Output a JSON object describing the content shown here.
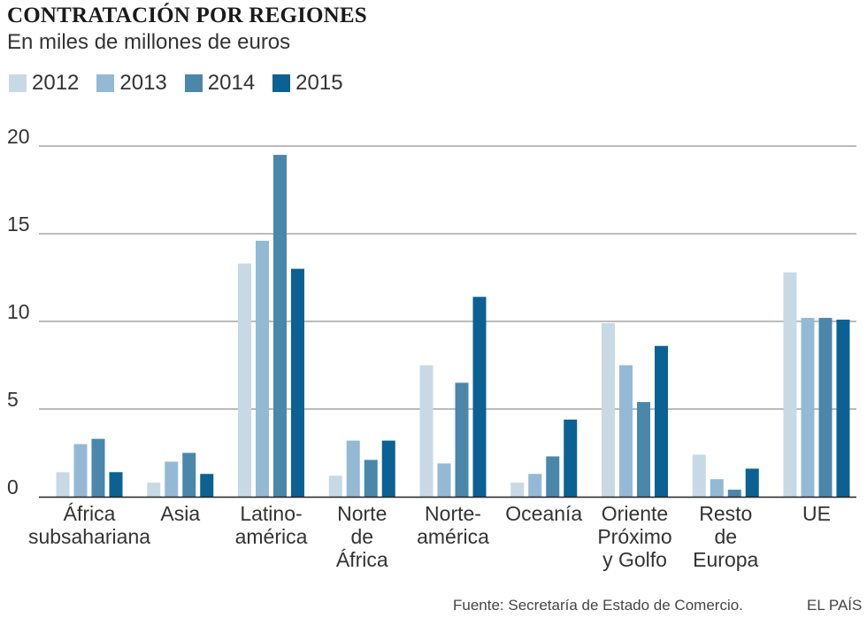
{
  "chart_data": {
    "type": "bar",
    "title": "CONTRATACIÓN POR REGIONES",
    "subtitle": "En miles de millones de euros",
    "categories": [
      [
        "África",
        "subsahariana"
      ],
      [
        "Asia"
      ],
      [
        "Latino-",
        "américa"
      ],
      [
        "Norte",
        "de",
        "África"
      ],
      [
        "Norte-",
        "américa"
      ],
      [
        "Oceanía"
      ],
      [
        "Oriente",
        "Próximo",
        "y Golfo"
      ],
      [
        "Resto",
        "de",
        "Europa"
      ],
      [
        "UE"
      ]
    ],
    "series": [
      {
        "name": "2012",
        "color": "#c8d9e6",
        "values": [
          1.4,
          0.8,
          13.3,
          1.2,
          7.5,
          0.8,
          9.9,
          2.4,
          12.8
        ]
      },
      {
        "name": "2013",
        "color": "#94b9d4",
        "values": [
          3.0,
          2.0,
          14.6,
          3.2,
          1.9,
          1.3,
          7.5,
          1.0,
          10.2
        ]
      },
      {
        "name": "2014",
        "color": "#4a87ab",
        "values": [
          3.3,
          2.5,
          19.5,
          2.1,
          6.5,
          2.3,
          5.4,
          0.4,
          10.2
        ]
      },
      {
        "name": "2015",
        "color": "#0b6193",
        "values": [
          1.4,
          1.3,
          13.0,
          3.2,
          11.4,
          4.4,
          8.6,
          1.6,
          10.1
        ]
      }
    ],
    "y_ticks": [
      "0",
      "5",
      "10",
      "15",
      "20"
    ],
    "ylim": [
      0,
      20
    ],
    "xlabel": "",
    "ylabel": ""
  },
  "footer": {
    "source": "Fuente: Secretaría de Estado de Comercio.",
    "brand": "EL PAÍS"
  }
}
